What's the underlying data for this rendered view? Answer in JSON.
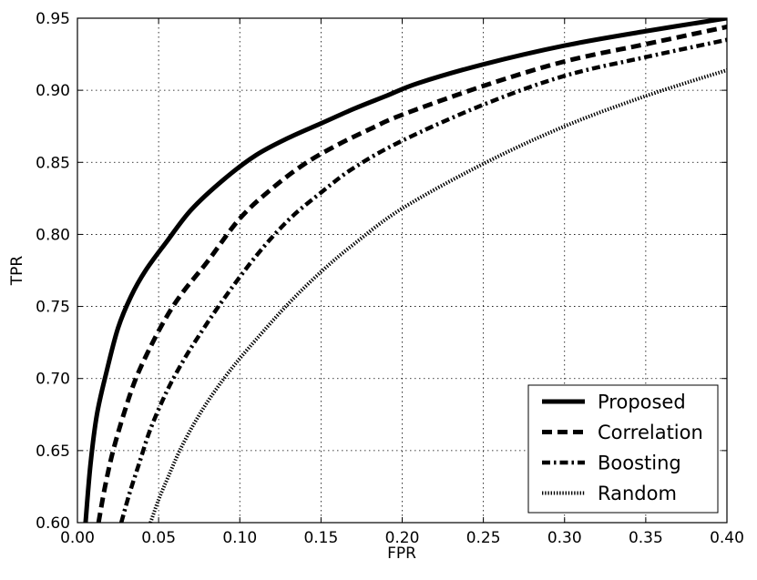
{
  "chart_data": {
    "type": "line",
    "xlabel": "FPR",
    "ylabel": "TPR",
    "xlim": [
      0.0,
      0.4
    ],
    "ylim": [
      0.6,
      0.95
    ],
    "x_ticks": [
      0.0,
      0.05,
      0.1,
      0.15,
      0.2,
      0.25,
      0.3,
      0.35,
      0.4
    ],
    "x_tick_labels": [
      "0.00",
      "0.05",
      "0.10",
      "0.15",
      "0.20",
      "0.25",
      "0.30",
      "0.35",
      "0.40"
    ],
    "y_ticks": [
      0.6,
      0.65,
      0.7,
      0.75,
      0.8,
      0.85,
      0.9,
      0.95
    ],
    "y_tick_labels": [
      "0.60",
      "0.65",
      "0.70",
      "0.75",
      "0.80",
      "0.85",
      "0.90",
      "0.95"
    ],
    "grid": true,
    "legend_position": "bottom-right",
    "series": [
      {
        "name": "Proposed",
        "style": "solid",
        "color": "#000000",
        "points": [
          [
            0.005,
            0.6
          ],
          [
            0.008,
            0.64
          ],
          [
            0.012,
            0.675
          ],
          [
            0.018,
            0.705
          ],
          [
            0.025,
            0.735
          ],
          [
            0.033,
            0.757
          ],
          [
            0.042,
            0.775
          ],
          [
            0.055,
            0.795
          ],
          [
            0.07,
            0.817
          ],
          [
            0.09,
            0.838
          ],
          [
            0.11,
            0.855
          ],
          [
            0.13,
            0.867
          ],
          [
            0.15,
            0.877
          ],
          [
            0.17,
            0.887
          ],
          [
            0.19,
            0.896
          ],
          [
            0.21,
            0.905
          ],
          [
            0.25,
            0.918
          ],
          [
            0.3,
            0.931
          ],
          [
            0.35,
            0.941
          ],
          [
            0.4,
            0.95
          ]
        ]
      },
      {
        "name": "Correlation",
        "style": "dashed",
        "color": "#000000",
        "points": [
          [
            0.013,
            0.6
          ],
          [
            0.017,
            0.625
          ],
          [
            0.022,
            0.65
          ],
          [
            0.029,
            0.677
          ],
          [
            0.036,
            0.7
          ],
          [
            0.045,
            0.722
          ],
          [
            0.055,
            0.743
          ],
          [
            0.065,
            0.76
          ],
          [
            0.08,
            0.781
          ],
          [
            0.1,
            0.811
          ],
          [
            0.12,
            0.832
          ],
          [
            0.14,
            0.849
          ],
          [
            0.16,
            0.862
          ],
          [
            0.18,
            0.873
          ],
          [
            0.2,
            0.883
          ],
          [
            0.25,
            0.903
          ],
          [
            0.3,
            0.92
          ],
          [
            0.35,
            0.932
          ],
          [
            0.4,
            0.944
          ]
        ]
      },
      {
        "name": "Boosting",
        "style": "dash-dot",
        "color": "#000000",
        "points": [
          [
            0.027,
            0.6
          ],
          [
            0.032,
            0.62
          ],
          [
            0.038,
            0.641
          ],
          [
            0.045,
            0.665
          ],
          [
            0.055,
            0.691
          ],
          [
            0.065,
            0.712
          ],
          [
            0.075,
            0.73
          ],
          [
            0.09,
            0.755
          ],
          [
            0.11,
            0.785
          ],
          [
            0.13,
            0.81
          ],
          [
            0.15,
            0.829
          ],
          [
            0.17,
            0.846
          ],
          [
            0.2,
            0.865
          ],
          [
            0.25,
            0.89
          ],
          [
            0.3,
            0.91
          ],
          [
            0.35,
            0.923
          ],
          [
            0.4,
            0.935
          ]
        ]
      },
      {
        "name": "Random",
        "style": "dotted",
        "color": "#000000",
        "points": [
          [
            0.045,
            0.6
          ],
          [
            0.05,
            0.616
          ],
          [
            0.056,
            0.632
          ],
          [
            0.063,
            0.65
          ],
          [
            0.072,
            0.669
          ],
          [
            0.082,
            0.687
          ],
          [
            0.095,
            0.707
          ],
          [
            0.11,
            0.727
          ],
          [
            0.13,
            0.752
          ],
          [
            0.15,
            0.774
          ],
          [
            0.17,
            0.793
          ],
          [
            0.2,
            0.818
          ],
          [
            0.25,
            0.849
          ],
          [
            0.3,
            0.875
          ],
          [
            0.35,
            0.896
          ],
          [
            0.4,
            0.914
          ]
        ]
      }
    ]
  }
}
